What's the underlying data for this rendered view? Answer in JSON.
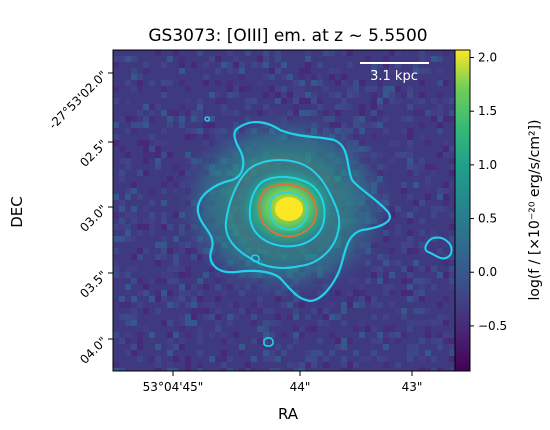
{
  "chart_data": {
    "type": "heatmap",
    "title": "GS3073: [OIII] em. at z ~ 5.5500",
    "xlabel": "RA",
    "ylabel": "DEC",
    "x_ticks": [
      "53°04'45\"",
      "44\"",
      "43\""
    ],
    "y_ticks": [
      "-27°53'02.0\"",
      "02.5\"",
      "03.0\"",
      "03.5\"",
      "04.0\""
    ],
    "scalebar_label": "3.1 kpc",
    "colorbar": {
      "label": "log(f / [×10⁻²⁰ erg/s/cm²])",
      "ticks": [
        "2.0",
        "1.5",
        "1.0",
        "0.5",
        "0.0",
        "−0.5"
      ],
      "tick_values": [
        2.0,
        1.5,
        1.0,
        0.5,
        0.0,
        -0.5
      ],
      "vmin": -0.92,
      "vmax": 2.07,
      "colormap": "viridis"
    },
    "contour_color": "#22d3ee",
    "contour_inner_color": "#e0703a",
    "grid": false
  }
}
